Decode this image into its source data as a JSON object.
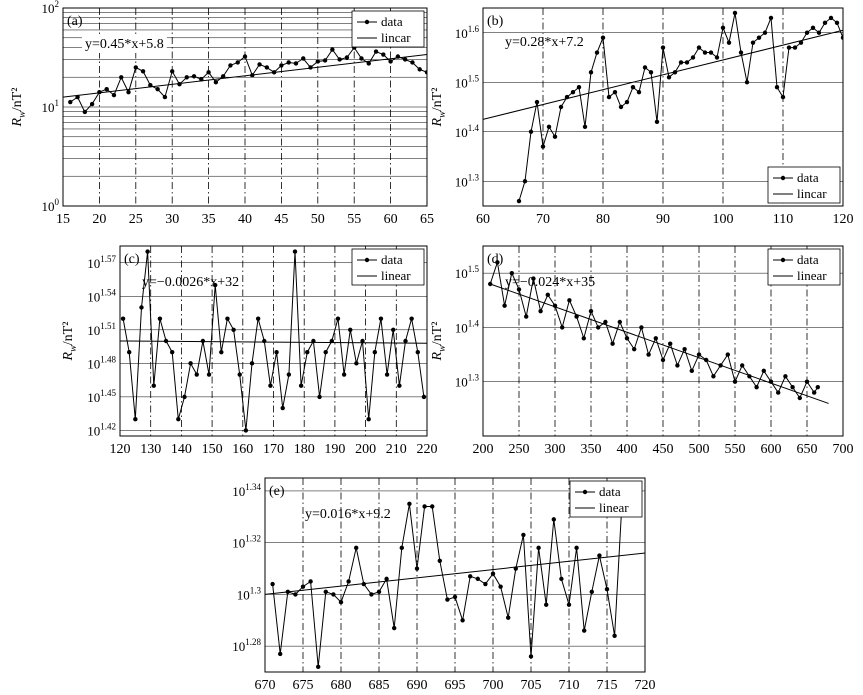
{
  "colors": {
    "line": "#000000",
    "background": "#ffffff",
    "grid": "#000000"
  },
  "chart_data": [
    {
      "type": "line",
      "panel_label": "(a)",
      "ylabel_main": "R",
      "ylabel_sub": "w",
      "ylabel_unit": "/nT²",
      "equation": "y=0.45*x+5.8",
      "legend": {
        "data": "data",
        "fit": "lincar"
      },
      "legend_placement": "top-right",
      "yscale": "log",
      "xlim": [
        15,
        65
      ],
      "ylim": [
        0,
        2
      ],
      "xticks": [
        15,
        20,
        25,
        30,
        35,
        40,
        45,
        50,
        55,
        60,
        65
      ],
      "xtick_labels": [
        "15",
        "20",
        "25",
        "30",
        "35",
        "40",
        "45",
        "50",
        "55",
        "60",
        "65"
      ],
      "yticks": [
        0,
        1,
        2
      ],
      "ytick_labels": [
        {
          "base": "10",
          "exp": "0"
        },
        {
          "base": "10",
          "exp": "1"
        },
        {
          "base": "10",
          "exp": "2"
        }
      ],
      "x": [
        16,
        17,
        18,
        19,
        20,
        21,
        22,
        23,
        24,
        25,
        26,
        27,
        28,
        29,
        30,
        31,
        32,
        33,
        34,
        35,
        36,
        37,
        38,
        39,
        40,
        41,
        42,
        43,
        44,
        45,
        46,
        47,
        48,
        49,
        50,
        51,
        52,
        53,
        54,
        55,
        56,
        57,
        58,
        59,
        60,
        61,
        62,
        63,
        64,
        65
      ],
      "y": [
        1.05,
        1.1,
        0.95,
        1.03,
        1.15,
        1.18,
        1.12,
        1.3,
        1.15,
        1.4,
        1.36,
        1.22,
        1.18,
        1.1,
        1.36,
        1.23,
        1.3,
        1.31,
        1.28,
        1.35,
        1.25,
        1.31,
        1.42,
        1.45,
        1.51,
        1.32,
        1.43,
        1.4,
        1.35,
        1.42,
        1.45,
        1.44,
        1.49,
        1.4,
        1.46,
        1.47,
        1.58,
        1.48,
        1.5,
        1.6,
        1.49,
        1.44,
        1.56,
        1.53,
        1.46,
        1.51,
        1.48,
        1.45,
        1.38,
        1.35
      ],
      "fit": {
        "x": [
          15,
          65
        ],
        "y": [
          1.1,
          1.53
        ]
      }
    },
    {
      "type": "line",
      "panel_label": "(b)",
      "ylabel_main": "R",
      "ylabel_sub": "w",
      "ylabel_unit": "/nT²",
      "equation": "y=0.28*x+7.2",
      "legend": {
        "data": "data",
        "fit": "lincar"
      },
      "legend_placement": "bottom-right",
      "yscale": "log",
      "xlim": [
        60,
        120
      ],
      "ylim": [
        1.25,
        1.65
      ],
      "xticks": [
        60,
        70,
        80,
        90,
        100,
        110,
        120
      ],
      "xtick_labels": [
        "60",
        "70",
        "80",
        "90",
        "100",
        "110",
        "120"
      ],
      "yticks": [
        1.3,
        1.4,
        1.5,
        1.6
      ],
      "ytick_labels": [
        {
          "base": "10",
          "exp": "1.3"
        },
        {
          "base": "10",
          "exp": "1.4"
        },
        {
          "base": "10",
          "exp": "1.5"
        },
        {
          "base": "10",
          "exp": "1.6"
        }
      ],
      "x": [
        66,
        67,
        68,
        69,
        70,
        71,
        72,
        73,
        74,
        75,
        76,
        77,
        78,
        79,
        80,
        81,
        82,
        83,
        84,
        85,
        86,
        87,
        88,
        89,
        90,
        91,
        92,
        93,
        94,
        95,
        96,
        97,
        98,
        99,
        100,
        101,
        102,
        103,
        104,
        105,
        106,
        107,
        108,
        109,
        110,
        111,
        112,
        113,
        114,
        115,
        116,
        117,
        118,
        119,
        120
      ],
      "y": [
        1.26,
        1.3,
        1.4,
        1.46,
        1.37,
        1.41,
        1.39,
        1.45,
        1.47,
        1.48,
        1.49,
        1.41,
        1.52,
        1.56,
        1.59,
        1.47,
        1.48,
        1.45,
        1.46,
        1.49,
        1.48,
        1.53,
        1.52,
        1.42,
        1.57,
        1.51,
        1.52,
        1.54,
        1.54,
        1.55,
        1.57,
        1.56,
        1.56,
        1.55,
        1.61,
        1.58,
        1.64,
        1.56,
        1.5,
        1.58,
        1.59,
        1.6,
        1.63,
        1.49,
        1.47,
        1.57,
        1.57,
        1.58,
        1.6,
        1.61,
        1.6,
        1.62,
        1.63,
        1.62,
        1.59
      ],
      "fit": {
        "x": [
          60,
          120
        ],
        "y": [
          1.425,
          1.605
        ]
      }
    },
    {
      "type": "line",
      "panel_label": "(c)",
      "ylabel_main": "R",
      "ylabel_sub": "w",
      "ylabel_unit": "/nT²",
      "equation": "y=−0.0026*x+32",
      "legend": {
        "data": "data",
        "fit": "linear"
      },
      "legend_placement": "top-right",
      "yscale": "log",
      "xlim": [
        120,
        220
      ],
      "ylim": [
        1.415,
        1.585
      ],
      "xticks": [
        120,
        130,
        140,
        150,
        160,
        170,
        180,
        190,
        200,
        210,
        220
      ],
      "xtick_labels": [
        "120",
        "130",
        "140",
        "150",
        "160",
        "170",
        "180",
        "190",
        "200",
        "210",
        "220"
      ],
      "yticks": [
        1.42,
        1.45,
        1.48,
        1.51,
        1.54,
        1.57
      ],
      "ytick_labels": [
        {
          "base": "10",
          "exp": "1.42"
        },
        {
          "base": "10",
          "exp": "1.45"
        },
        {
          "base": "10",
          "exp": "1.48"
        },
        {
          "base": "10",
          "exp": "1.51"
        },
        {
          "base": "10",
          "exp": "1.54"
        },
        {
          "base": "10",
          "exp": "1.57"
        }
      ],
      "x": [
        121,
        123,
        125,
        127,
        129,
        131,
        133,
        135,
        137,
        139,
        141,
        143,
        145,
        147,
        149,
        151,
        153,
        155,
        157,
        159,
        161,
        163,
        165,
        167,
        169,
        171,
        173,
        175,
        177,
        179,
        181,
        183,
        185,
        187,
        189,
        191,
        193,
        195,
        197,
        199,
        201,
        203,
        205,
        207,
        209,
        211,
        213,
        215,
        217,
        219
      ],
      "y": [
        1.52,
        1.49,
        1.43,
        1.53,
        1.58,
        1.46,
        1.52,
        1.5,
        1.49,
        1.43,
        1.45,
        1.48,
        1.47,
        1.5,
        1.47,
        1.55,
        1.49,
        1.52,
        1.51,
        1.47,
        1.42,
        1.48,
        1.52,
        1.5,
        1.46,
        1.49,
        1.44,
        1.47,
        1.58,
        1.46,
        1.49,
        1.5,
        1.45,
        1.49,
        1.5,
        1.52,
        1.47,
        1.51,
        1.48,
        1.5,
        1.43,
        1.49,
        1.52,
        1.47,
        1.51,
        1.46,
        1.5,
        1.52,
        1.49,
        1.45
      ],
      "fit": {
        "x": [
          120,
          220
        ],
        "y": [
          1.5,
          1.498
        ]
      }
    },
    {
      "type": "line",
      "panel_label": "(d)",
      "ylabel_main": "R",
      "ylabel_sub": "w",
      "ylabel_unit": "/nT²",
      "equation": "y=−0.024*x+35",
      "legend": {
        "data": "data",
        "fit": "linear"
      },
      "legend_placement": "top-right",
      "yscale": "log",
      "xlim": [
        200,
        700
      ],
      "ylim": [
        1.2,
        1.55
      ],
      "xticks": [
        200,
        250,
        300,
        350,
        400,
        450,
        500,
        550,
        600,
        650,
        700
      ],
      "xtick_labels": [
        "200",
        "250",
        "300",
        "350",
        "400",
        "450",
        "500",
        "550",
        "600",
        "650",
        "700"
      ],
      "yticks": [
        1.3,
        1.4,
        1.5
      ],
      "ytick_labels": [
        {
          "base": "10",
          "exp": "1.3"
        },
        {
          "base": "10",
          "exp": "1.4"
        },
        {
          "base": "10",
          "exp": "1.5"
        }
      ],
      "x": [
        210,
        220,
        230,
        240,
        250,
        260,
        270,
        280,
        290,
        300,
        310,
        320,
        330,
        340,
        350,
        360,
        370,
        380,
        390,
        400,
        410,
        420,
        430,
        440,
        450,
        460,
        470,
        480,
        490,
        500,
        510,
        520,
        530,
        540,
        550,
        560,
        570,
        580,
        590,
        600,
        610,
        620,
        630,
        640,
        650,
        660,
        665
      ],
      "y": [
        1.48,
        1.52,
        1.44,
        1.5,
        1.47,
        1.42,
        1.49,
        1.43,
        1.46,
        1.44,
        1.4,
        1.45,
        1.42,
        1.38,
        1.43,
        1.4,
        1.41,
        1.37,
        1.41,
        1.38,
        1.36,
        1.4,
        1.35,
        1.38,
        1.34,
        1.37,
        1.33,
        1.36,
        1.32,
        1.35,
        1.34,
        1.31,
        1.33,
        1.35,
        1.3,
        1.33,
        1.31,
        1.29,
        1.32,
        1.3,
        1.28,
        1.31,
        1.29,
        1.27,
        1.3,
        1.28,
        1.29
      ],
      "fit": {
        "x": [
          210,
          680
        ],
        "y": [
          1.48,
          1.26
        ]
      }
    },
    {
      "type": "line",
      "panel_label": "(e)",
      "ylabel_main": "",
      "ylabel_sub": "",
      "ylabel_unit": "",
      "equation": "y=0.016*x+9.2",
      "legend": {
        "data": "data",
        "fit": "linear"
      },
      "legend_placement": "top-right",
      "yscale": "log",
      "xlim": [
        670,
        720
      ],
      "ylim": [
        1.27,
        1.345
      ],
      "xticks": [
        670,
        675,
        680,
        685,
        690,
        695,
        700,
        705,
        710,
        715,
        720
      ],
      "xtick_labels": [
        "670",
        "675",
        "680",
        "685",
        "690",
        "695",
        "700",
        "705",
        "710",
        "715",
        "720"
      ],
      "yticks": [
        1.28,
        1.3,
        1.32,
        1.34
      ],
      "ytick_labels": [
        {
          "base": "10",
          "exp": "1.28"
        },
        {
          "base": "10",
          "exp": "1.3"
        },
        {
          "base": "10",
          "exp": "1.32"
        },
        {
          "base": "10",
          "exp": "1.34"
        }
      ],
      "x": [
        671,
        672,
        673,
        674,
        675,
        676,
        677,
        678,
        679,
        680,
        681,
        682,
        683,
        684,
        685,
        686,
        687,
        688,
        689,
        690,
        691,
        692,
        693,
        694,
        695,
        696,
        697,
        698,
        699,
        700,
        701,
        702,
        703,
        704,
        705,
        706,
        707,
        708,
        709,
        710,
        711,
        712,
        713,
        714,
        715,
        716,
        717,
        718,
        719
      ],
      "y": [
        1.304,
        1.277,
        1.301,
        1.3,
        1.303,
        1.305,
        1.272,
        1.301,
        1.3,
        1.297,
        1.305,
        1.318,
        1.304,
        1.3,
        1.301,
        1.306,
        1.287,
        1.318,
        1.335,
        1.31,
        1.334,
        1.334,
        1.313,
        1.298,
        1.299,
        1.29,
        1.307,
        1.306,
        1.304,
        1.308,
        1.303,
        1.291,
        1.31,
        1.323,
        1.276,
        1.318,
        1.296,
        1.329,
        1.306,
        1.296,
        1.318,
        1.286,
        1.301,
        1.315,
        1.302,
        1.284,
        1.337,
        1.34,
        1.339
      ],
      "fit": {
        "x": [
          670,
          720
        ],
        "y": [
          1.3,
          1.316
        ]
      }
    }
  ]
}
